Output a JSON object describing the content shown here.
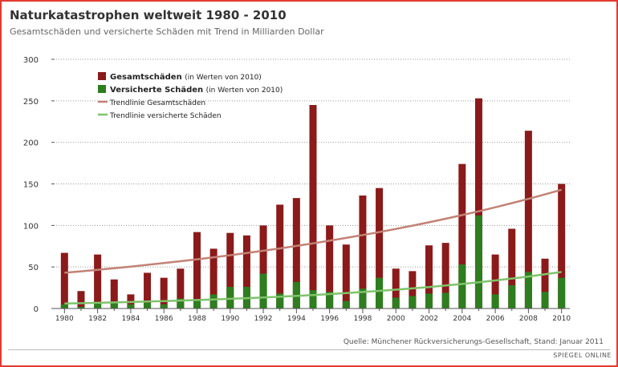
{
  "chart_data": {
    "type": "bar",
    "title": "Naturkatastrophen weltweit 1980 - 2010",
    "subtitle": "Gesamtschäden und versicherte Schäden mit Trend in Milliarden Dollar",
    "source": "Quelle: Münchener Rückversicherungs-Gesellschaft, Stand: Januar 2011",
    "brand": "SPIEGEL ONLINE",
    "ylim": [
      0,
      300
    ],
    "yticks": [
      0,
      50,
      100,
      150,
      200,
      250,
      300
    ],
    "categories": [
      1980,
      1981,
      1982,
      1983,
      1984,
      1985,
      1986,
      1987,
      1988,
      1989,
      1990,
      1991,
      1992,
      1993,
      1994,
      1995,
      1996,
      1997,
      1998,
      1999,
      2000,
      2001,
      2002,
      2003,
      2004,
      2005,
      2006,
      2007,
      2008,
      2009,
      2010
    ],
    "xtick_labels": [
      "1980",
      "1982",
      "1984",
      "1986",
      "1988",
      "1990",
      "1992",
      "1994",
      "1996",
      "1998",
      "2000",
      "2002",
      "2004",
      "2006",
      "2008",
      "2010"
    ],
    "series": [
      {
        "name": "Gesamtschäden",
        "note": "(in Werten von 2010)",
        "color": "#8b1a1a",
        "values": [
          67,
          21,
          65,
          35,
          17,
          43,
          37,
          48,
          92,
          72,
          91,
          88,
          100,
          125,
          133,
          245,
          100,
          77,
          136,
          145,
          48,
          45,
          76,
          79,
          174,
          253,
          65,
          96,
          214,
          60,
          150
        ]
      },
      {
        "name": "Versicherte Schäden",
        "note": "(in Werten von 2010)",
        "color": "#2e7d1f",
        "values": [
          5,
          2,
          8,
          8,
          5,
          7,
          5,
          12,
          10,
          17,
          26,
          26,
          42,
          18,
          32,
          22,
          20,
          9,
          24,
          37,
          13,
          15,
          18,
          19,
          53,
          112,
          17,
          28,
          44,
          20,
          37
        ]
      }
    ],
    "trends": [
      {
        "name": "Trendlinie Gesamtschäden",
        "color": "#c28276",
        "start": 43,
        "end": 143
      },
      {
        "name": "Trendlinie versicherte Schäden",
        "color": "#7fc36b",
        "start": 6,
        "end": 44
      }
    ]
  }
}
